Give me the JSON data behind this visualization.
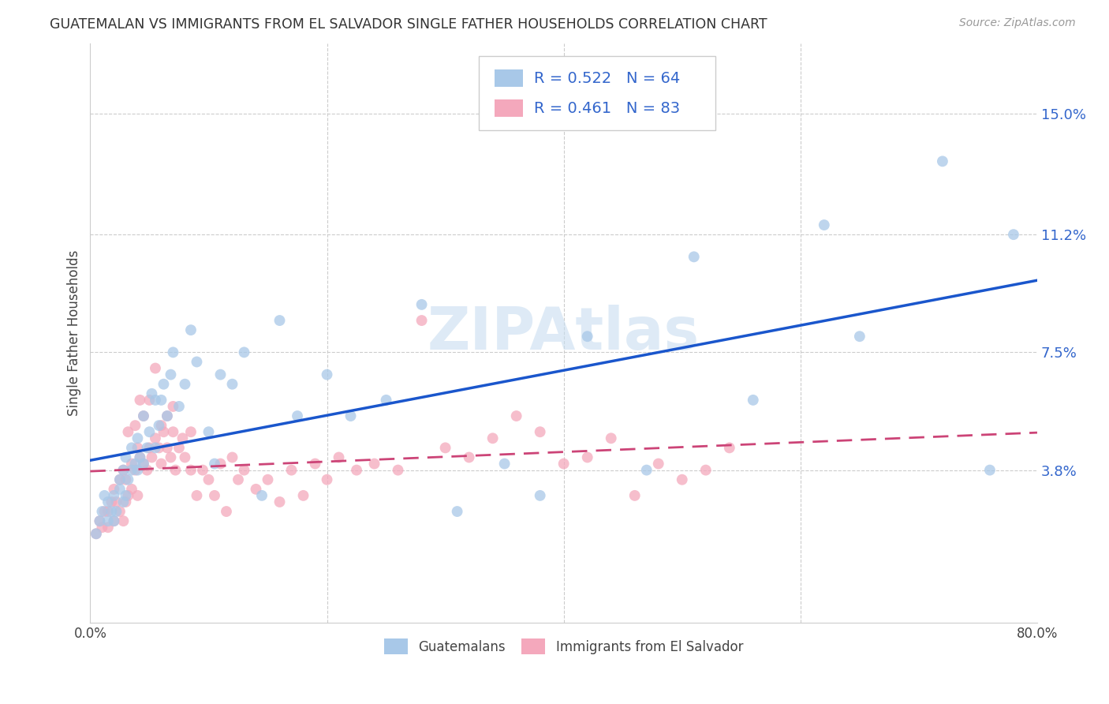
{
  "title": "GUATEMALAN VS IMMIGRANTS FROM EL SALVADOR SINGLE FATHER HOUSEHOLDS CORRELATION CHART",
  "source": "Source: ZipAtlas.com",
  "ylabel": "Single Father Households",
  "ytick_labels": [
    "3.8%",
    "7.5%",
    "11.2%",
    "15.0%"
  ],
  "ytick_values": [
    0.038,
    0.075,
    0.112,
    0.15
  ],
  "xlim": [
    0.0,
    0.8
  ],
  "ylim": [
    -0.01,
    0.172
  ],
  "guatemalan_R": "0.522",
  "guatemalan_N": "64",
  "salvador_R": "0.461",
  "salvador_N": "83",
  "blue_color": "#a8c8e8",
  "pink_color": "#f4a8bc",
  "line_blue": "#1a56cc",
  "line_pink": "#cc4477",
  "legend_text_color": "#3366cc",
  "legend_label_1": "Guatemalans",
  "legend_label_2": "Immigrants from El Salvador",
  "guatemalan_x": [
    0.005,
    0.008,
    0.01,
    0.012,
    0.015,
    0.015,
    0.018,
    0.02,
    0.02,
    0.022,
    0.025,
    0.025,
    0.028,
    0.028,
    0.03,
    0.03,
    0.032,
    0.035,
    0.035,
    0.038,
    0.04,
    0.04,
    0.042,
    0.045,
    0.045,
    0.048,
    0.05,
    0.052,
    0.055,
    0.055,
    0.058,
    0.06,
    0.062,
    0.065,
    0.068,
    0.07,
    0.075,
    0.08,
    0.085,
    0.09,
    0.1,
    0.105,
    0.11,
    0.12,
    0.13,
    0.145,
    0.16,
    0.175,
    0.2,
    0.22,
    0.25,
    0.28,
    0.31,
    0.35,
    0.38,
    0.42,
    0.47,
    0.51,
    0.56,
    0.62,
    0.65,
    0.72,
    0.76,
    0.78
  ],
  "guatemalan_y": [
    0.018,
    0.022,
    0.025,
    0.03,
    0.022,
    0.028,
    0.025,
    0.022,
    0.03,
    0.025,
    0.032,
    0.035,
    0.028,
    0.038,
    0.03,
    0.042,
    0.035,
    0.038,
    0.045,
    0.04,
    0.038,
    0.048,
    0.042,
    0.04,
    0.055,
    0.045,
    0.05,
    0.062,
    0.045,
    0.06,
    0.052,
    0.06,
    0.065,
    0.055,
    0.068,
    0.075,
    0.058,
    0.065,
    0.082,
    0.072,
    0.05,
    0.04,
    0.068,
    0.065,
    0.075,
    0.03,
    0.085,
    0.055,
    0.068,
    0.055,
    0.06,
    0.09,
    0.025,
    0.04,
    0.03,
    0.08,
    0.038,
    0.105,
    0.06,
    0.115,
    0.08,
    0.135,
    0.038,
    0.112
  ],
  "salvador_x": [
    0.005,
    0.008,
    0.01,
    0.012,
    0.015,
    0.015,
    0.018,
    0.02,
    0.02,
    0.022,
    0.025,
    0.025,
    0.028,
    0.028,
    0.03,
    0.03,
    0.032,
    0.032,
    0.035,
    0.035,
    0.038,
    0.038,
    0.04,
    0.04,
    0.042,
    0.042,
    0.045,
    0.045,
    0.048,
    0.05,
    0.05,
    0.052,
    0.055,
    0.055,
    0.058,
    0.06,
    0.06,
    0.062,
    0.065,
    0.065,
    0.068,
    0.07,
    0.07,
    0.072,
    0.075,
    0.078,
    0.08,
    0.085,
    0.085,
    0.09,
    0.095,
    0.1,
    0.105,
    0.11,
    0.115,
    0.12,
    0.125,
    0.13,
    0.14,
    0.15,
    0.16,
    0.17,
    0.18,
    0.19,
    0.2,
    0.21,
    0.225,
    0.24,
    0.26,
    0.28,
    0.3,
    0.32,
    0.34,
    0.36,
    0.38,
    0.4,
    0.42,
    0.44,
    0.46,
    0.48,
    0.5,
    0.52,
    0.54
  ],
  "salvador_y": [
    0.018,
    0.022,
    0.02,
    0.025,
    0.02,
    0.025,
    0.028,
    0.022,
    0.032,
    0.028,
    0.025,
    0.035,
    0.022,
    0.038,
    0.028,
    0.035,
    0.03,
    0.05,
    0.032,
    0.04,
    0.038,
    0.052,
    0.03,
    0.045,
    0.042,
    0.06,
    0.04,
    0.055,
    0.038,
    0.045,
    0.06,
    0.042,
    0.048,
    0.07,
    0.045,
    0.04,
    0.052,
    0.05,
    0.045,
    0.055,
    0.042,
    0.05,
    0.058,
    0.038,
    0.045,
    0.048,
    0.042,
    0.038,
    0.05,
    0.03,
    0.038,
    0.035,
    0.03,
    0.04,
    0.025,
    0.042,
    0.035,
    0.038,
    0.032,
    0.035,
    0.028,
    0.038,
    0.03,
    0.04,
    0.035,
    0.042,
    0.038,
    0.04,
    0.038,
    0.085,
    0.045,
    0.042,
    0.048,
    0.055,
    0.05,
    0.04,
    0.042,
    0.048,
    0.03,
    0.04,
    0.035,
    0.038,
    0.045
  ]
}
